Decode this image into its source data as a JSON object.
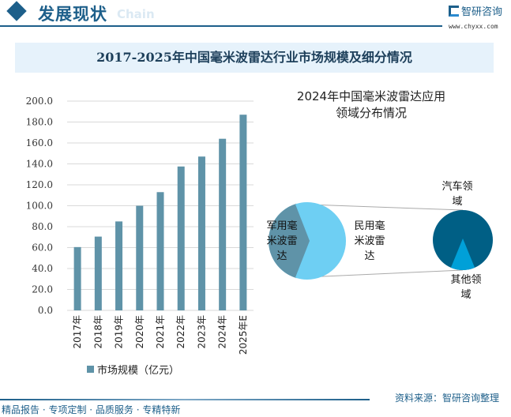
{
  "header": {
    "title": "发展现状",
    "subtitle": "Chain",
    "brand": "智研咨询",
    "url": "www.chyxx.com"
  },
  "title": "2017-2025年中国毫米波雷达行业市场规模及细分情况",
  "chart_data": [
    {
      "type": "bar",
      "categories": [
        "2017年",
        "2018年",
        "2019年",
        "2020年",
        "2021年",
        "2022年",
        "2023年",
        "2024年",
        "2025年E"
      ],
      "series": [
        {
          "name": "市场规模（亿元）",
          "values": [
            60.5,
            70.5,
            85.0,
            100.0,
            113.0,
            137.5,
            147.0,
            164.0,
            187.0
          ]
        }
      ],
      "ylim": [
        0,
        200
      ],
      "yticks": [
        "0.0",
        "20.0",
        "40.0",
        "60.0",
        "80.0",
        "100.0",
        "120.0",
        "140.0",
        "160.0",
        "180.0",
        "200.0"
      ],
      "grid": true,
      "legend": "bottom",
      "color": "#5f93a8"
    },
    {
      "type": "pie",
      "title": "2024年中国毫米波雷达应用领域分布情况",
      "title_lines": [
        "2024年中国毫米波雷达应用",
        "领域分布情况"
      ],
      "slices": [
        {
          "name": "军用毫米波雷达",
          "share": 0.4,
          "color": "#5f93a8"
        },
        {
          "name": "民用毫米波雷达",
          "share": 0.6,
          "color": "#6ecff3"
        }
      ],
      "sub_pie": {
        "slices": [
          {
            "name": "汽车领域",
            "share": 0.87,
            "color": "#005f85"
          },
          {
            "name": "其他领域",
            "share": 0.13,
            "color": "#00a0d8"
          }
        ]
      },
      "labels": {
        "military": [
          "军用毫",
          "米波雷",
          "达"
        ],
        "civil": [
          "民用毫",
          "米波雷",
          "达"
        ],
        "auto": [
          "汽车领",
          "域"
        ],
        "other": [
          "其他领",
          "域"
        ]
      }
    }
  ],
  "footer": {
    "slogan": "精品报告 · 专项定制 · 品质服务 · 专精特新",
    "source": "资料来源：智研咨询整理"
  }
}
